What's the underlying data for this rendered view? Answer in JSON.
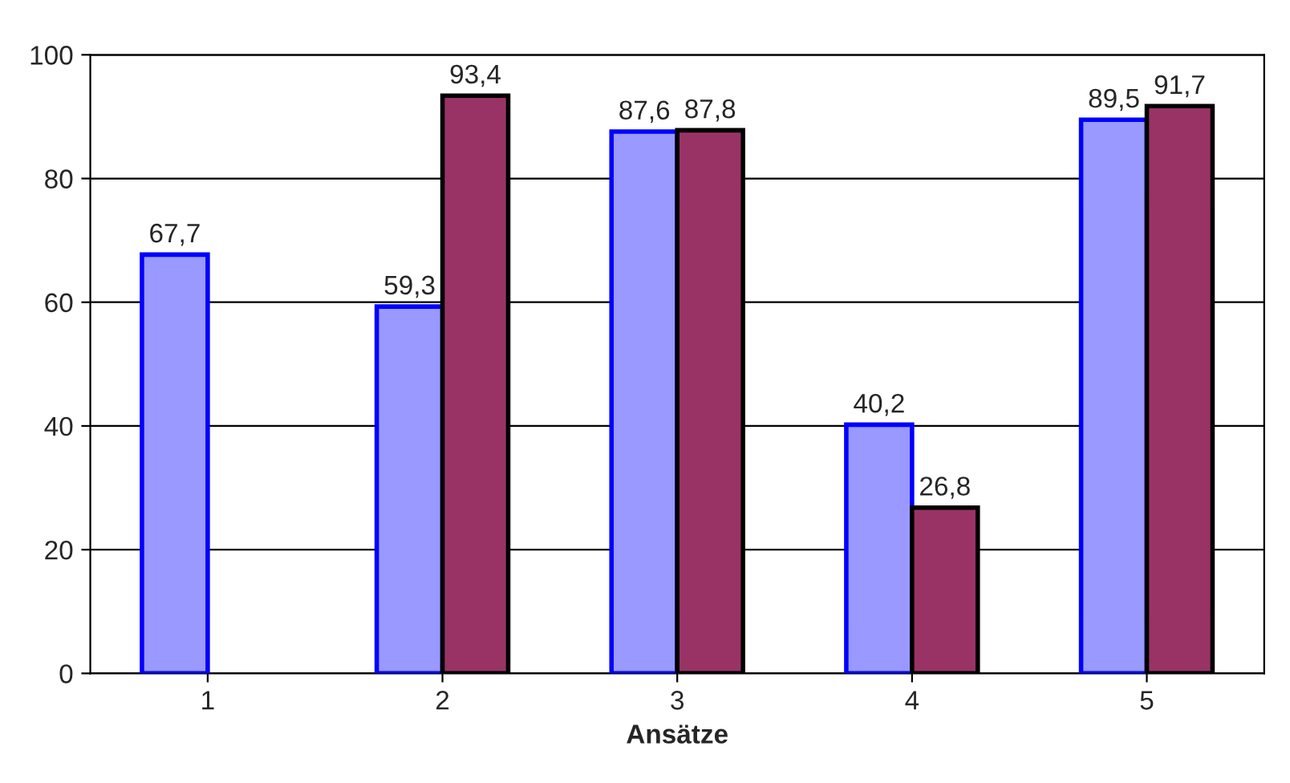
{
  "chart_data": {
    "type": "bar",
    "xlabel": "Ansätze",
    "categories": [
      "1",
      "2",
      "3",
      "4",
      "5"
    ],
    "series": [
      {
        "color": "#9999ff",
        "values": [
          67.7,
          59.3,
          87.6,
          40.2,
          89.5
        ],
        "value_labels": [
          "67,7",
          "59,3",
          "87,6",
          "40,2",
          "89,5"
        ]
      },
      {
        "color": "#993366",
        "values": [
          null,
          93.4,
          87.8,
          26.8,
          91.7
        ],
        "value_labels": [
          null,
          "93,4",
          "87,8",
          "26,8",
          "91,7"
        ]
      }
    ],
    "ylim": [
      0,
      100
    ],
    "yticks": [
      0,
      20,
      40,
      60,
      80,
      100
    ],
    "grid": "y",
    "legend": false
  }
}
